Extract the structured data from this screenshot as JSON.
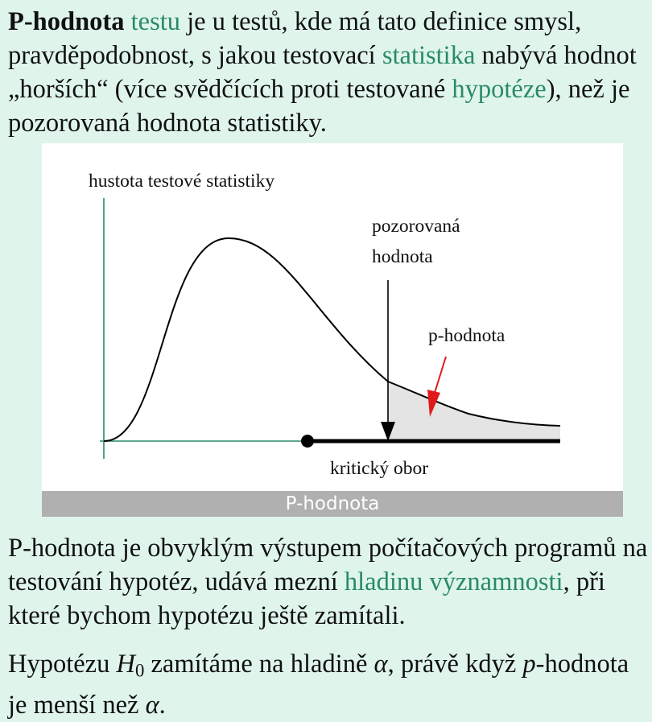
{
  "intro": {
    "term_bold": "P-hodnota",
    "link_testu": "testu",
    "text_a": " je u testů, kde má tato definice smysl, pravděpodobnost, s jakou testovací ",
    "link_statistika": "statistika",
    "text_b": " nabývá hodnot „horších“ (více svědčících proti testované ",
    "link_hypoteze": "hypotéze",
    "text_c": "), než je pozorovaná hodnota statistiky."
  },
  "figure": {
    "density_label": "hustota testové statistiky",
    "observed_label_line1": "pozorovaná",
    "observed_label_line2": "hodnota",
    "pvalue_label": "p-hodnota",
    "critical_region_label": "kritický obor",
    "caption": "P-hodnota",
    "colors": {
      "axis": "#2a8a68",
      "shade": "#e4e4e4",
      "arrow_red": "#e01a1a",
      "caption_bg": "#b0b0b0"
    }
  },
  "para2": {
    "text_a": "P-hodnota je obvyklým výstupem počítačových programů na testování hypotéz, udává mezní ",
    "link_hladinu": "hladinu významnosti",
    "text_b": ", při které bychom hypotézu ještě zamítali."
  },
  "para3": {
    "text_a": "Hypotézu ",
    "h_symbol": "H",
    "h_sub": "0",
    "text_b": " zamítáme na hladině ",
    "alpha1": "α",
    "text_c": ", právě když ",
    "p_symbol": "p",
    "text_d": "-hodnota je menší než ",
    "alpha2": "α",
    "text_e": "."
  }
}
